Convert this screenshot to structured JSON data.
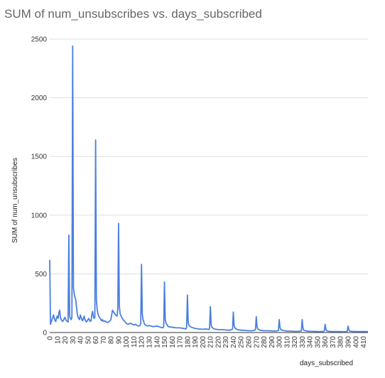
{
  "chart_data": {
    "type": "line",
    "title": "SUM of num_unsubscribes vs. days_subscribed",
    "xlabel": "days_subscribed",
    "ylabel": "SUM of num_unsubscribes",
    "xlim": [
      0,
      416
    ],
    "ylim": [
      0,
      2500
    ],
    "x_ticks": [
      0,
      10,
      20,
      30,
      40,
      50,
      60,
      70,
      80,
      90,
      100,
      110,
      120,
      130,
      140,
      150,
      160,
      170,
      180,
      190,
      200,
      210,
      220,
      230,
      240,
      250,
      260,
      270,
      280,
      290,
      300,
      310,
      320,
      330,
      340,
      350,
      360,
      370,
      380,
      390,
      400,
      410
    ],
    "y_ticks": [
      0,
      500,
      1000,
      1500,
      2000,
      2500
    ],
    "grid": "horizontal",
    "legend": "none",
    "color": "#4a7fe0",
    "series": [
      {
        "x": [
          0,
          1,
          2,
          3,
          4,
          5,
          6,
          7,
          8,
          9,
          10,
          11,
          12,
          13,
          14,
          15,
          16,
          17,
          18,
          19,
          20,
          21,
          22,
          23,
          24,
          25,
          26,
          27,
          28,
          29,
          30,
          31,
          32,
          33,
          34,
          35,
          36,
          37,
          38,
          39,
          40,
          41,
          42,
          43,
          44,
          45,
          46,
          47,
          48,
          49,
          50,
          51,
          52,
          53,
          54,
          55,
          56,
          57,
          58,
          59,
          60,
          61,
          62,
          63,
          64,
          65,
          66,
          67,
          68,
          69,
          70,
          72,
          74,
          76,
          78,
          80,
          82,
          84,
          86,
          88,
          89,
          90,
          91,
          92,
          94,
          96,
          98,
          100,
          102,
          104,
          106,
          108,
          110,
          112,
          114,
          116,
          118,
          119,
          120,
          121,
          122,
          124,
          126,
          128,
          130,
          135,
          140,
          145,
          148,
          149,
          150,
          151,
          152,
          155,
          160,
          165,
          170,
          175,
          178,
          179,
          180,
          181,
          182,
          185,
          190,
          195,
          200,
          205,
          208,
          209,
          210,
          211,
          212,
          215,
          220,
          225,
          230,
          235,
          238,
          239,
          240,
          241,
          242,
          245,
          250,
          255,
          260,
          265,
          268,
          269,
          270,
          271,
          272,
          275,
          280,
          285,
          290,
          295,
          298,
          299,
          300,
          301,
          302,
          305,
          310,
          315,
          320,
          325,
          328,
          329,
          330,
          331,
          332,
          335,
          340,
          345,
          350,
          355,
          358,
          359,
          360,
          361,
          362,
          365,
          370,
          375,
          380,
          385,
          388,
          389,
          390,
          391,
          392,
          395,
          400,
          405,
          410,
          416
        ],
        "y": [
          620,
          70,
          90,
          110,
          130,
          150,
          120,
          100,
          95,
          130,
          140,
          120,
          170,
          190,
          130,
          110,
          100,
          95,
          105,
          120,
          130,
          110,
          100,
          95,
          90,
          830,
          140,
          120,
          110,
          130,
          2440,
          380,
          330,
          300,
          280,
          220,
          160,
          130,
          120,
          110,
          150,
          130,
          110,
          100,
          120,
          140,
          110,
          100,
          90,
          100,
          110,
          120,
          105,
          95,
          100,
          150,
          180,
          140,
          120,
          130,
          1640,
          280,
          200,
          160,
          140,
          130,
          120,
          110,
          100,
          110,
          95,
          100,
          90,
          85,
          95,
          110,
          190,
          170,
          150,
          140,
          200,
          930,
          230,
          160,
          130,
          110,
          95,
          80,
          70,
          75,
          80,
          70,
          65,
          70,
          60,
          55,
          60,
          80,
          580,
          160,
          110,
          70,
          60,
          55,
          60,
          50,
          55,
          45,
          40,
          50,
          430,
          110,
          80,
          50,
          45,
          40,
          40,
          35,
          30,
          45,
          320,
          90,
          60,
          45,
          35,
          30,
          28,
          30,
          25,
          40,
          220,
          70,
          45,
          30,
          25,
          25,
          22,
          20,
          25,
          30,
          175,
          60,
          40,
          25,
          20,
          18,
          15,
          15,
          20,
          25,
          135,
          50,
          30,
          20,
          15,
          15,
          14,
          12,
          15,
          18,
          110,
          45,
          25,
          18,
          12,
          12,
          10,
          10,
          12,
          15,
          110,
          40,
          20,
          14,
          10,
          10,
          8,
          8,
          10,
          14,
          70,
          30,
          15,
          10,
          8,
          8,
          8,
          7,
          8,
          12,
          55,
          25,
          12,
          10,
          8,
          8,
          8,
          8
        ]
      }
    ]
  }
}
